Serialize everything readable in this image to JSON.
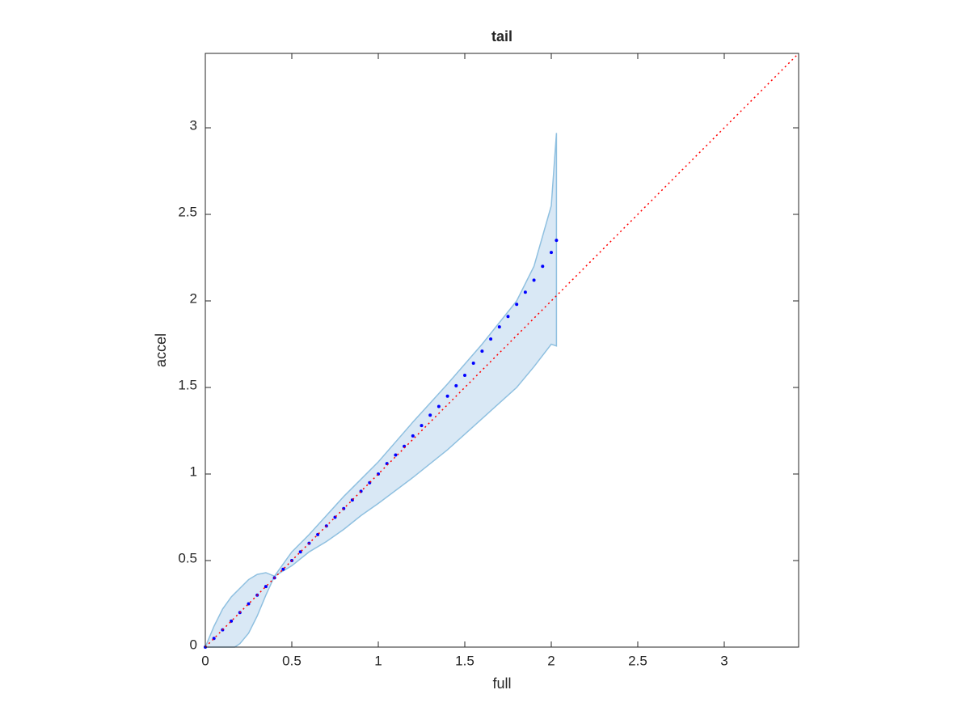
{
  "chart_data": {
    "type": "scatter",
    "title": "tail",
    "x_label": "full",
    "y_label": "accel",
    "xlim": [
      0,
      3.43
    ],
    "ylim": [
      0,
      3.43
    ],
    "xticks": [
      0,
      0.5,
      1,
      1.5,
      2,
      2.5,
      3
    ],
    "yticks": [
      0,
      0.5,
      1,
      1.5,
      2,
      2.5,
      3
    ],
    "series": [
      {
        "mark": "band",
        "color": "#d9e8f5",
        "edge_color": "#8fc0e0",
        "x": [
          0,
          0.05,
          0.1,
          0.15,
          0.17,
          0.2,
          0.25,
          0.3,
          0.35,
          0.4,
          0.5,
          0.6,
          0.7,
          0.8,
          0.9,
          1.0,
          1.2,
          1.4,
          1.6,
          1.8,
          1.9,
          2.0,
          2.03
        ],
        "values": [
          0,
          0.12,
          0.22,
          0.29,
          0.31,
          0.34,
          0.39,
          0.42,
          0.43,
          0.41,
          0.47,
          0.55,
          0.61,
          0.68,
          0.76,
          0.83,
          0.98,
          1.14,
          1.32,
          1.5,
          1.62,
          1.75,
          1.74
        ],
        "values_b": [
          null,
          null,
          null,
          null,
          0,
          0.02,
          0.08,
          0.18,
          0.3,
          0.41,
          0.55,
          0.65,
          0.76,
          0.87,
          0.97,
          1.07,
          1.3,
          1.52,
          1.75,
          2.0,
          2.2,
          2.55,
          2.97
        ]
      },
      {
        "mark": "dots",
        "color": "#0000ff",
        "x": [
          0,
          0.05,
          0.1,
          0.15,
          0.2,
          0.25,
          0.3,
          0.35,
          0.4,
          0.45,
          0.5,
          0.55,
          0.6,
          0.65,
          0.7,
          0.75,
          0.8,
          0.85,
          0.9,
          0.95,
          1.0,
          1.05,
          1.1,
          1.15,
          1.2,
          1.25,
          1.3,
          1.35,
          1.4,
          1.45,
          1.5,
          1.55,
          1.6,
          1.65,
          1.7,
          1.75,
          1.8,
          1.85,
          1.9,
          1.95,
          2.0,
          2.03
        ],
        "values": [
          0,
          0.05,
          0.1,
          0.15,
          0.2,
          0.25,
          0.3,
          0.35,
          0.4,
          0.45,
          0.5,
          0.55,
          0.6,
          0.65,
          0.7,
          0.75,
          0.8,
          0.85,
          0.9,
          0.95,
          1.0,
          1.06,
          1.11,
          1.16,
          1.22,
          1.28,
          1.34,
          1.39,
          1.45,
          1.51,
          1.57,
          1.64,
          1.71,
          1.78,
          1.85,
          1.91,
          1.98,
          2.05,
          2.12,
          2.2,
          2.28,
          2.35
        ]
      },
      {
        "mark": "dotted-line",
        "color": "#ff0000",
        "x": [
          0,
          3.43
        ],
        "values": [
          0,
          3.43
        ]
      }
    ]
  }
}
